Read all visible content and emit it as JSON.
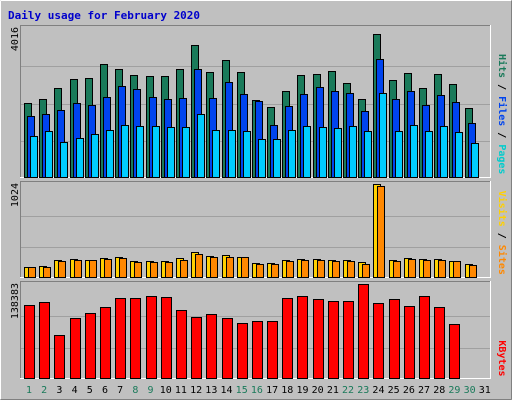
{
  "chart_data": [
    {
      "type": "bar",
      "title": "Daily usage for February 2020",
      "ymax_label": "4016",
      "side_labels": [
        {
          "text": "Pages",
          "color": "#00cccc"
        },
        {
          "text": "Files",
          "color": "#0044ee"
        },
        {
          "text": "Hits",
          "color": "#1a7a5a"
        }
      ],
      "ylim": [
        0,
        4016
      ],
      "series": [
        {
          "name": "Hits",
          "color": "#1a7a5a",
          "values": [
            2004,
            2099,
            2408,
            2642,
            2668,
            3054,
            2922,
            2738,
            2725,
            2713,
            2923,
            3551,
            2818,
            3150,
            2821,
            2072,
            1875,
            2321,
            2744,
            2783,
            2852,
            2539,
            2096,
            3863,
            2602,
            2790,
            2390,
            2769,
            2506,
            1850,
            0
          ]
        },
        {
          "name": "Files",
          "color": "#0044ee",
          "values": [
            1639,
            1705,
            1800,
            2007,
            1950,
            2148,
            2447,
            2379,
            2149,
            2101,
            2120,
            2909,
            2136,
            2569,
            2230,
            2049,
            1406,
            1922,
            2238,
            2433,
            2327,
            2256,
            1773,
            3167,
            2112,
            2318,
            1948,
            2221,
            2014,
            1445,
            0
          ]
        },
        {
          "name": "Pages",
          "color": "#00ccff",
          "values": [
            1111,
            1239,
            942,
            1048,
            1166,
            1271,
            1399,
            1374,
            1379,
            1361,
            1337,
            1707,
            1255,
            1279,
            1239,
            1016,
            1017,
            1280,
            1369,
            1344,
            1319,
            1385,
            1235,
            2265,
            1246,
            1399,
            1252,
            1377,
            1220,
            927,
            0
          ]
        }
      ]
    },
    {
      "type": "bar",
      "ymax_label": "1024",
      "side_labels": [
        {
          "text": "Sites",
          "color": "#ff8800"
        },
        {
          "text": "Visits",
          "color": "#ffd000"
        }
      ],
      "ylim": [
        0,
        1024
      ],
      "series": [
        {
          "name": "Visits",
          "color": "#ffd000",
          "values": [
            112,
            122,
            183,
            202,
            188,
            205,
            224,
            179,
            174,
            172,
            204,
            274,
            226,
            237,
            225,
            154,
            153,
            186,
            194,
            197,
            191,
            188,
            160,
            1024,
            187,
            206,
            193,
            193,
            178,
            146,
            0
          ]
        },
        {
          "name": "Sites",
          "color": "#ff8800",
          "values": [
            106,
            114,
            171,
            183,
            184,
            194,
            212,
            168,
            168,
            169,
            188,
            248,
            215,
            223,
            219,
            143,
            146,
            175,
            184,
            184,
            180,
            179,
            142,
            1000,
            171,
            194,
            182,
            182,
            171,
            129,
            0
          ]
        }
      ]
    },
    {
      "type": "bar",
      "ymax_label": "138383",
      "side_labels": [
        {
          "text": "KBytes",
          "color": "#ff0000"
        }
      ],
      "ylim": [
        0,
        138383
      ],
      "series": [
        {
          "name": "KBytes",
          "color": "#ff0000",
          "values": [
            107000,
            112000,
            63000,
            88000,
            95000,
            105000,
            118000,
            118000,
            121000,
            119000,
            100000,
            90000,
            94000,
            89000,
            81000,
            84000,
            84000,
            118000,
            120000,
            117000,
            114000,
            113000,
            138000,
            110000,
            117000,
            106000,
            121000,
            105000,
            80000,
            0,
            0
          ]
        }
      ]
    }
  ],
  "days": [
    "1",
    "2",
    "3",
    "4",
    "5",
    "6",
    "7",
    "8",
    "9",
    "10",
    "11",
    "12",
    "13",
    "14",
    "15",
    "16",
    "17",
    "18",
    "19",
    "20",
    "21",
    "22",
    "23",
    "24",
    "25",
    "26",
    "27",
    "28",
    "29",
    "30",
    "31"
  ],
  "weekend_days": [
    1,
    8,
    15,
    22,
    29,
    2,
    9,
    16,
    23,
    30
  ],
  "colors": {
    "background": "#c0c0c0",
    "plot": "#c0c0c0",
    "title": "#0000cc",
    "weekday": "#000000",
    "weekend": "#1a7a5a",
    "grid": "#a0a0a0",
    "border_dark": "#808080",
    "border_light": "#ffffff"
  }
}
